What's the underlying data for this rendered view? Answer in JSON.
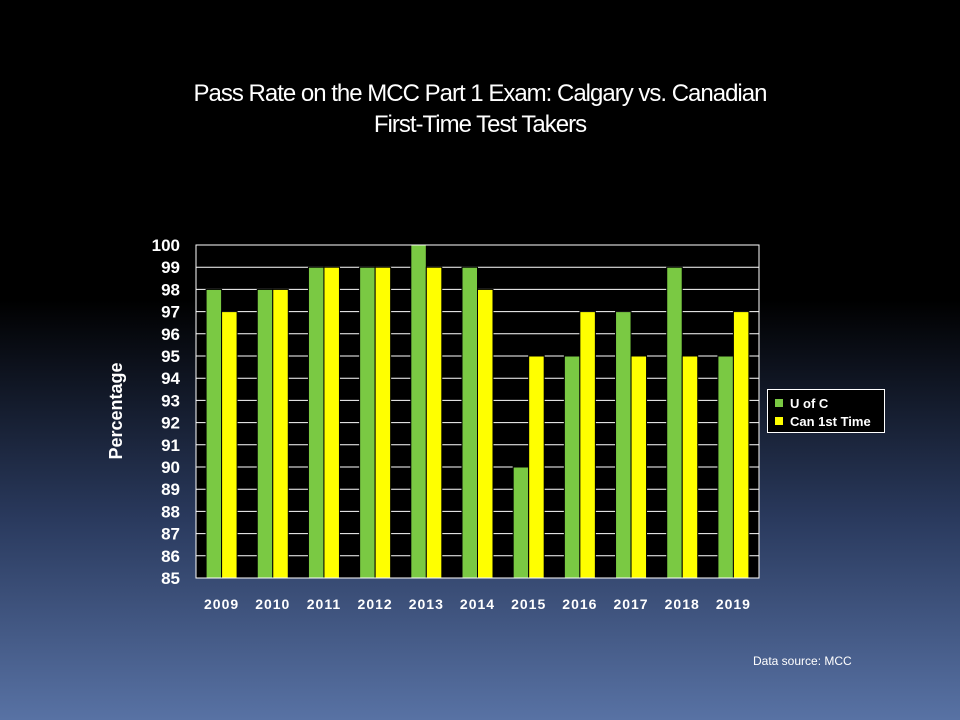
{
  "slide": {
    "title_line1": "Pass Rate on the MCC Part 1 Exam: Calgary vs. Canadian",
    "title_line2": "First-Time Test Takers",
    "source": "Data source: MCC"
  },
  "chart_data": {
    "type": "bar",
    "title": "Pass Rate on the MCC Part 1 Exam: Calgary vs. Canadian First-Time Test Takers",
    "xlabel": "",
    "ylabel": "Percentage",
    "categories": [
      "2009",
      "2010",
      "2011",
      "2012",
      "2013",
      "2014",
      "2015",
      "2016",
      "2017",
      "2018",
      "2019"
    ],
    "series": [
      {
        "name": "U of C",
        "color": "#7ac943",
        "values": [
          98,
          98,
          99,
          99,
          100,
          99,
          90,
          95,
          97,
          99,
          95
        ]
      },
      {
        "name": "Can 1st Time",
        "color": "#ffff00",
        "values": [
          97,
          98,
          99,
          99,
          99,
          98,
          95,
          97,
          95,
          95,
          97
        ]
      }
    ],
    "ylim": [
      85,
      100
    ],
    "yticks": [
      85,
      86,
      87,
      88,
      89,
      90,
      91,
      92,
      93,
      94,
      95,
      96,
      97,
      98,
      99,
      100
    ],
    "grid": true,
    "legend_position": "right"
  }
}
